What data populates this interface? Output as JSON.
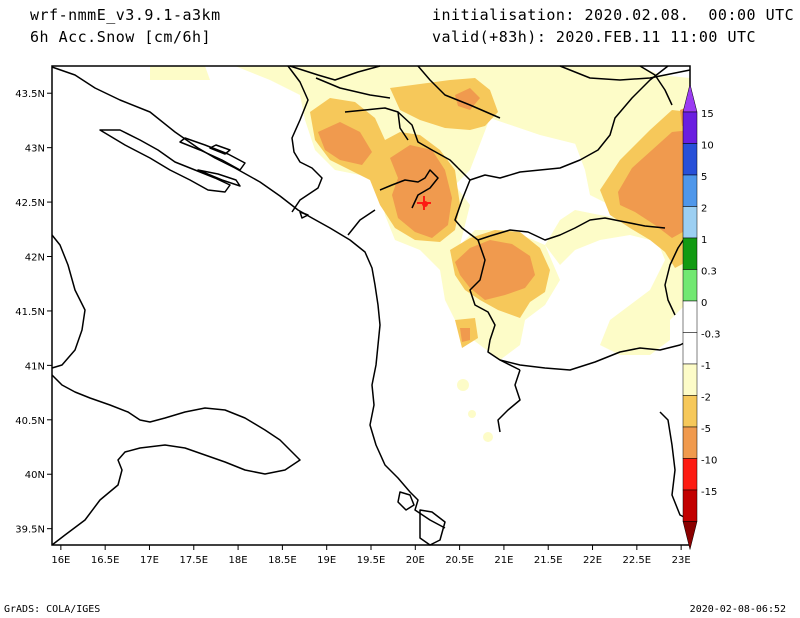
{
  "header": {
    "model": "wrf-nmmE_v3.9.1-a3km",
    "variable": "6h Acc.Snow [cm/6h]",
    "initialisation": "initialisation: 2020.02.08.  00:00 UTC",
    "valid": "valid(+83h): 2020.FEB.11 11:00 UTC"
  },
  "footer": {
    "left": "GrADS: COLA/IGES",
    "right": "2020-02-08-06:52"
  },
  "map": {
    "lon_labels": [
      "16E",
      "16.5E",
      "17E",
      "17.5E",
      "18E",
      "18.5E",
      "19E",
      "19.5E",
      "20E",
      "20.5E",
      "21E",
      "21.5E",
      "22E",
      "22.5E",
      "23E"
    ],
    "lat_labels": [
      "43.5N",
      "43N",
      "42.5N",
      "42N",
      "41.5N",
      "41N",
      "40.5N",
      "40N",
      "39.5N"
    ],
    "lon_range": [
      15.9,
      23.1
    ],
    "lat_range": [
      39.35,
      43.75
    ]
  },
  "colorbar": {
    "levels": [
      {
        "label": "15",
        "color": "#6a1ee0"
      },
      {
        "label": "10",
        "color": "#2850d8"
      },
      {
        "label": "5",
        "color": "#4f97ea"
      },
      {
        "label": "2",
        "color": "#9ccff2"
      },
      {
        "label": "1",
        "color": "#129a12"
      },
      {
        "label": "0.3",
        "color": "#72e872"
      },
      {
        "label": "0",
        "color": "#ffffff"
      },
      {
        "label": "-0.3",
        "color": "#ffffff"
      },
      {
        "label": "-1",
        "color": "#fdfcc8"
      },
      {
        "label": "-2",
        "color": "#f6c85a"
      },
      {
        "label": "-5",
        "color": "#f09a4e"
      },
      {
        "label": "-10",
        "color": "#fd1b12"
      },
      {
        "label": "-15",
        "color": "#c20000"
      }
    ],
    "top_color": "#9b3cf2",
    "bottom_color": "#8a0000"
  },
  "colors": {
    "light": "#fdfcc8",
    "mid": "#f6c85a",
    "high": "#f09a4e",
    "max": "#fd1b12"
  }
}
